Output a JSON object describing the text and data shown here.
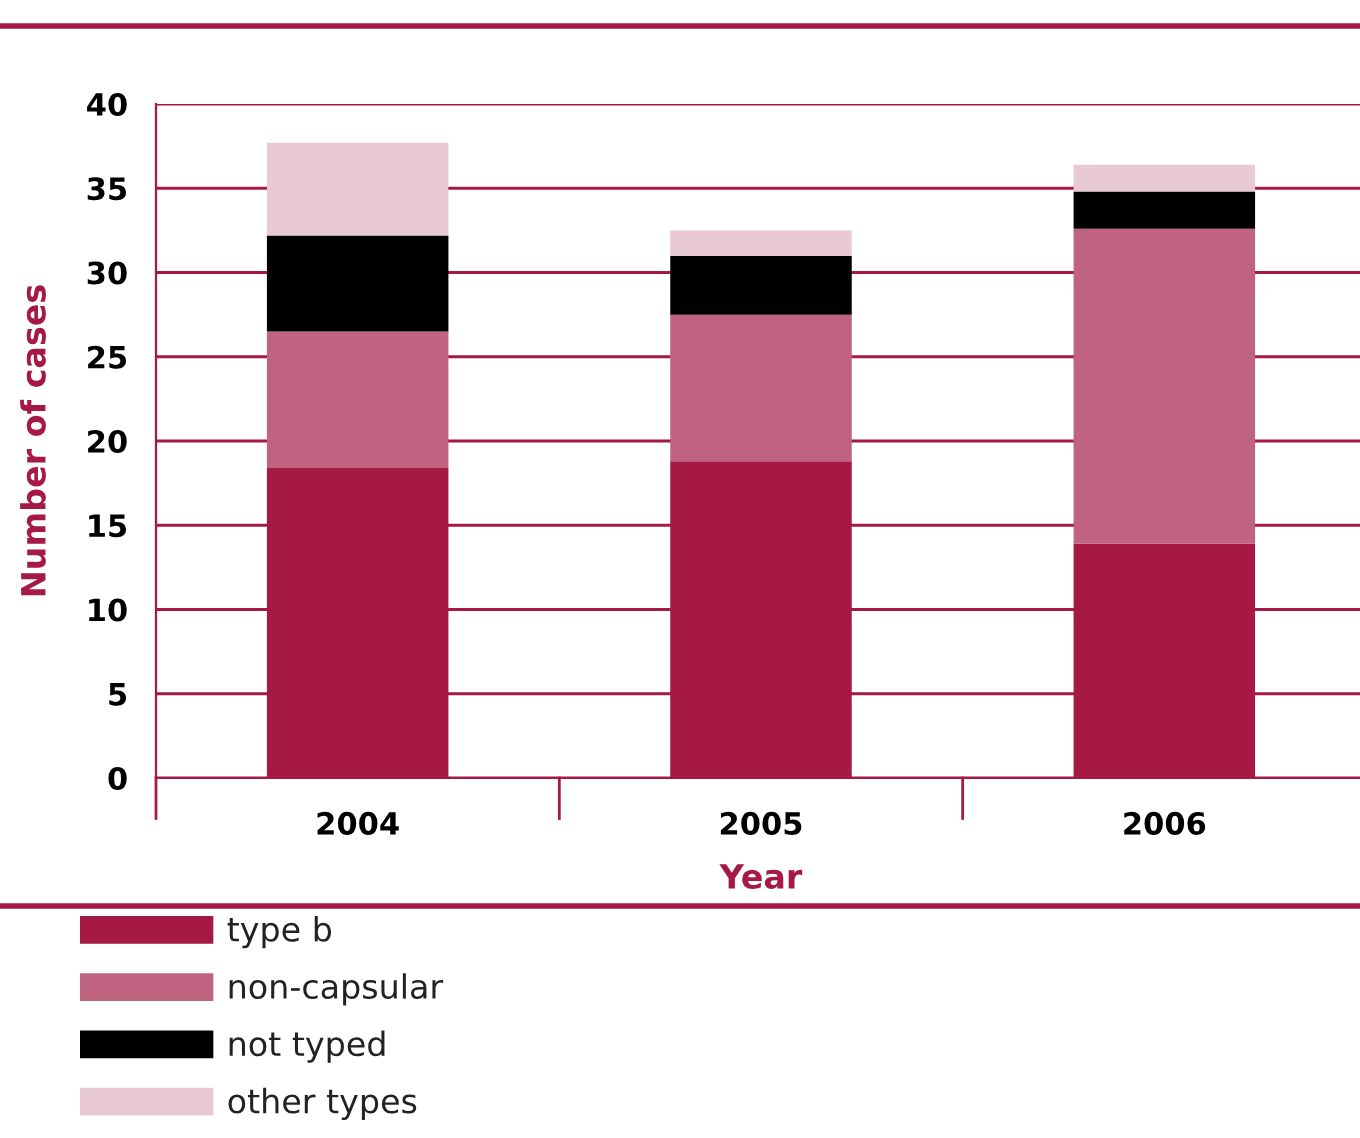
{
  "chart_data": {
    "type": "bar",
    "stacked": true,
    "xlabel": "Year",
    "ylabel": "Number of cases",
    "categories": [
      "2004",
      "2005",
      "2006"
    ],
    "series": [
      {
        "name": "type b",
        "color": "#a51944",
        "values": [
          18.4,
          18.8,
          13.9
        ]
      },
      {
        "name": "non-capsular",
        "color": "#c06380",
        "values": [
          8.1,
          8.7,
          18.7
        ]
      },
      {
        "name": "not typed",
        "color": "#000000",
        "values": [
          5.7,
          3.5,
          2.2
        ]
      },
      {
        "name": "other types",
        "color": "#e9cad4",
        "values": [
          5.5,
          1.5,
          1.6
        ]
      }
    ],
    "ylim": [
      0,
      40
    ],
    "yticks": [
      0,
      5,
      10,
      15,
      20,
      25,
      30,
      35,
      40
    ],
    "grid": "y",
    "legend": "bottom"
  }
}
